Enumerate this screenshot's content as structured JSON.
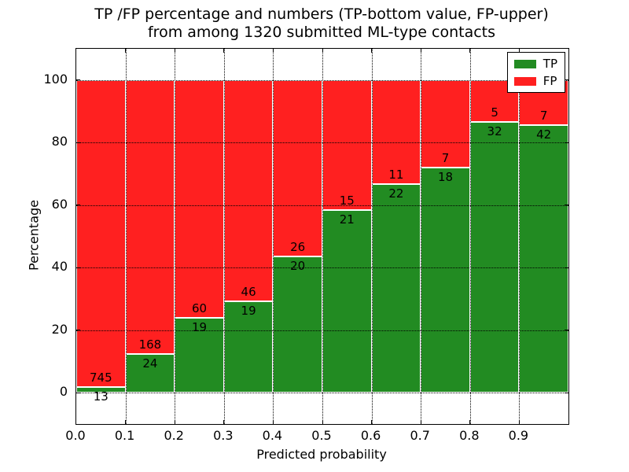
{
  "chart_data": {
    "type": "bar",
    "stacked": true,
    "title": "TP /FP percentage and numbers (TP-bottom value, FP-upper) from among 1320 submitted ML-type contacts",
    "title_lines": [
      "TP /FP percentage and numbers (TP-bottom value, FP-upper)",
      "from among 1320 submitted ML-type contacts"
    ],
    "xlabel": "Predicted probability",
    "ylabel": "Percentage",
    "total_contacts": 1320,
    "categories": [
      "0.0-0.1",
      "0.1-0.2",
      "0.2-0.3",
      "0.3-0.4",
      "0.4-0.5",
      "0.5-0.6",
      "0.6-0.7",
      "0.7-0.8",
      "0.8-0.9",
      "0.9-1.0"
    ],
    "bin_edges": [
      0.0,
      0.1,
      0.2,
      0.3,
      0.4,
      0.5,
      0.6,
      0.7,
      0.8,
      0.9,
      1.0
    ],
    "series": [
      {
        "name": "TP",
        "color": "#228b22",
        "counts": [
          13,
          24,
          19,
          19,
          20,
          21,
          22,
          18,
          32,
          42
        ]
      },
      {
        "name": "FP",
        "color": "#ff2020",
        "counts": [
          745,
          168,
          60,
          46,
          26,
          15,
          11,
          7,
          5,
          7
        ]
      }
    ],
    "tp_percent": [
      1.72,
      12.5,
      24.05,
      29.23,
      43.48,
      58.33,
      66.67,
      72.0,
      86.49,
      85.71
    ],
    "xlim": [
      0.0,
      1.0
    ],
    "ylim": [
      -10,
      110
    ],
    "xticks": [
      0.0,
      0.1,
      0.2,
      0.3,
      0.4,
      0.5,
      0.6,
      0.7,
      0.8,
      0.9
    ],
    "xtick_labels": [
      "0.0",
      "0.1",
      "0.2",
      "0.3",
      "0.4",
      "0.5",
      "0.6",
      "0.7",
      "0.8",
      "0.9"
    ],
    "yticks": [
      0,
      20,
      40,
      60,
      80,
      100
    ],
    "ytick_labels": [
      "0",
      "20",
      "40",
      "60",
      "80",
      "100"
    ],
    "grid": "dotted, drawn above bars",
    "legend": {
      "position": "upper right",
      "entries": [
        {
          "label": "TP",
          "color": "#228b22"
        },
        {
          "label": "FP",
          "color": "#ff2020"
        }
      ]
    }
  }
}
